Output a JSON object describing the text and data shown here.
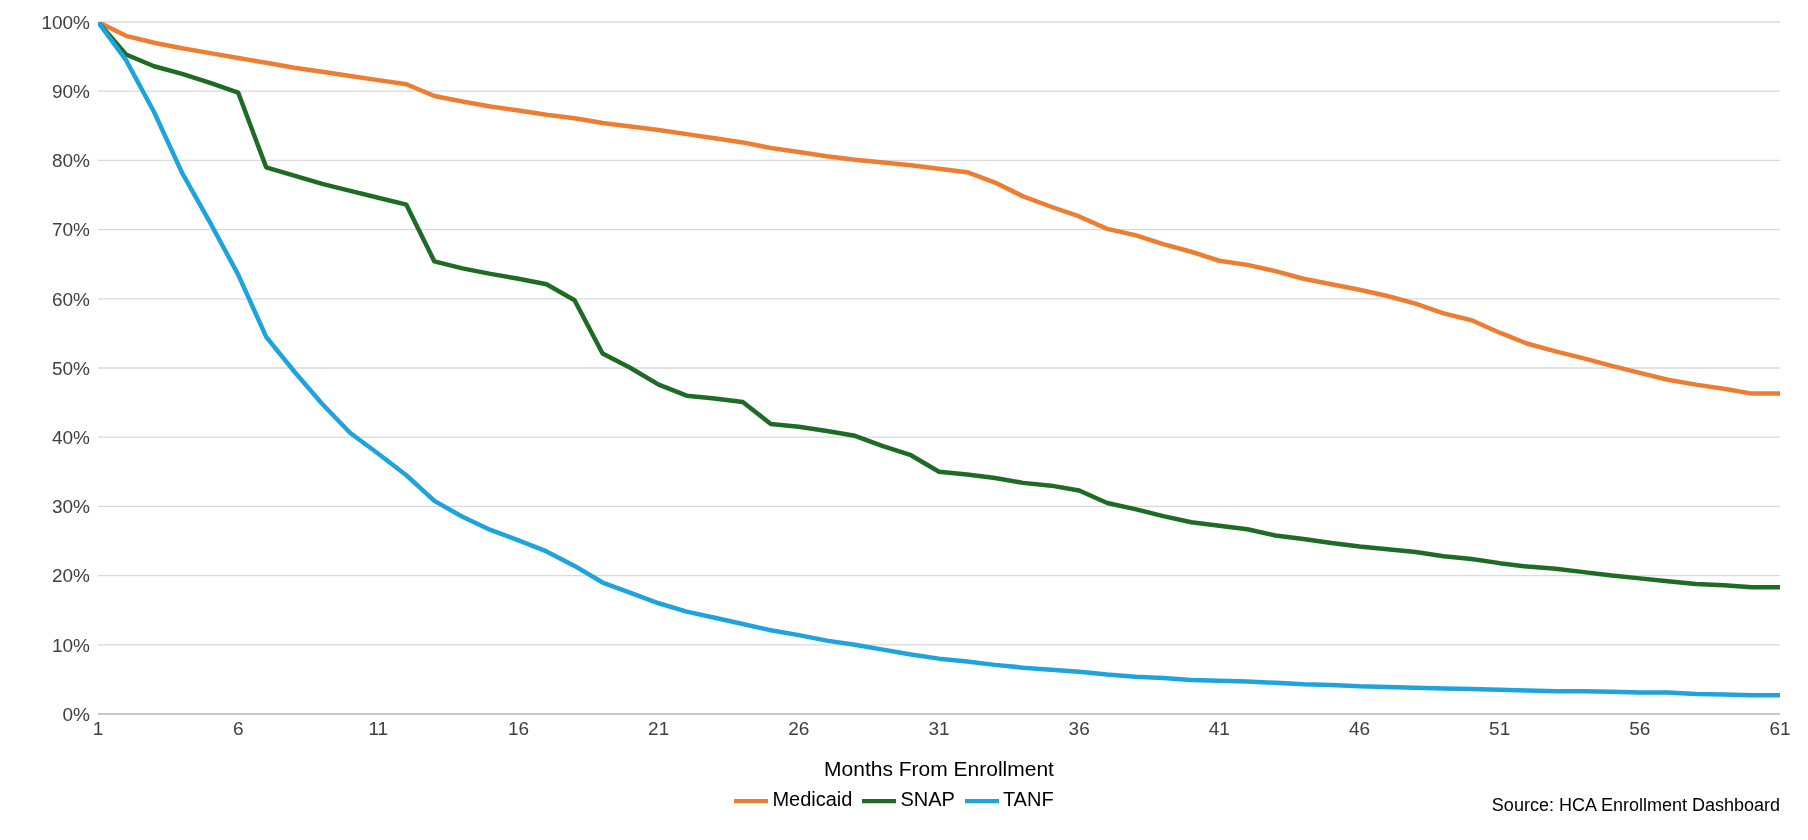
{
  "chart_data": {
    "type": "line",
    "xlabel": "Months From Enrollment",
    "x": [
      1,
      2,
      3,
      4,
      5,
      6,
      7,
      8,
      9,
      10,
      11,
      12,
      13,
      14,
      15,
      16,
      17,
      18,
      19,
      20,
      21,
      22,
      23,
      24,
      25,
      26,
      27,
      28,
      29,
      30,
      31,
      32,
      33,
      34,
      35,
      36,
      37,
      38,
      39,
      40,
      41,
      42,
      43,
      44,
      45,
      46,
      47,
      48,
      49,
      50,
      51,
      52,
      53,
      54,
      55,
      56,
      57,
      58,
      59,
      60,
      61
    ],
    "xlim": [
      1,
      61
    ],
    "xticks": [
      1,
      6,
      11,
      16,
      21,
      26,
      31,
      36,
      41,
      46,
      51,
      56,
      61
    ],
    "ylim": [
      0,
      100
    ],
    "yticks": [
      {
        "value": 0,
        "label": "0%"
      },
      {
        "value": 10,
        "label": "10%"
      },
      {
        "value": 20,
        "label": "20%"
      },
      {
        "value": 30,
        "label": "30%"
      },
      {
        "value": 40,
        "label": "40%"
      },
      {
        "value": 50,
        "label": "50%"
      },
      {
        "value": 60,
        "label": "60%"
      },
      {
        "value": 70,
        "label": "70%"
      },
      {
        "value": 80,
        "label": "80%"
      },
      {
        "value": 90,
        "label": "90%"
      },
      {
        "value": 100,
        "label": "100%"
      }
    ],
    "grid": "y",
    "legend": "bottom",
    "marker": "none",
    "line_style": "solid",
    "annotations": [
      "Source: HCA Enrollment Dashboard"
    ],
    "series": [
      {
        "name": "Medicaid",
        "color": "#ed7d31",
        "values": [
          100,
          98,
          97,
          96.2,
          95.5,
          94.8,
          94.1,
          93.4,
          92.8,
          92.2,
          91.6,
          91,
          89.3,
          88.5,
          87.8,
          87.2,
          86.6,
          86.1,
          85.4,
          84.9,
          84.4,
          83.8,
          83.2,
          82.6,
          81.8,
          81.2,
          80.6,
          80.1,
          79.7,
          79.3,
          78.8,
          78.3,
          76.8,
          74.8,
          73.3,
          71.9,
          70.1,
          69.2,
          67.9,
          66.8,
          65.5,
          64.9,
          64,
          62.9,
          62.1,
          61.3,
          60.4,
          59.3,
          57.9,
          56.9,
          55.1,
          53.5,
          52.4,
          51.4,
          50.3,
          49.3,
          48.3,
          47.6,
          47,
          46.3,
          46.3
        ]
      },
      {
        "name": "SNAP",
        "color": "#1e6b24",
        "values": [
          100,
          95.3,
          93.6,
          92.5,
          91.2,
          89.8,
          79,
          77.8,
          76.6,
          75.6,
          74.6,
          73.6,
          65.4,
          64.4,
          63.6,
          62.9,
          62.1,
          59.8,
          52.1,
          50,
          47.6,
          46,
          45.6,
          45.1,
          41.9,
          41.5,
          40.9,
          40.2,
          38.7,
          37.4,
          35,
          34.6,
          34.1,
          33.4,
          33,
          32.3,
          30.5,
          29.6,
          28.6,
          27.7,
          27.2,
          26.7,
          25.8,
          25.3,
          24.7,
          24.2,
          23.8,
          23.4,
          22.8,
          22.4,
          21.8,
          21.3,
          21,
          20.5,
          20,
          19.6,
          19.2,
          18.8,
          18.6,
          18.3,
          18.3
        ]
      },
      {
        "name": "TANF",
        "color": "#1fa3dc",
        "values": [
          100,
          94.5,
          87,
          78.2,
          71,
          63.5,
          54.5,
          49.5,
          44.8,
          40.6,
          37.6,
          34.5,
          30.8,
          28.5,
          26.6,
          25.1,
          23.5,
          21.4,
          19,
          17.5,
          16,
          14.8,
          13.9,
          13,
          12.1,
          11.4,
          10.6,
          10,
          9.3,
          8.6,
          8,
          7.6,
          7.1,
          6.7,
          6.4,
          6.1,
          5.7,
          5.4,
          5.2,
          4.9,
          4.8,
          4.7,
          4.5,
          4.3,
          4.2,
          4,
          3.9,
          3.8,
          3.7,
          3.6,
          3.5,
          3.4,
          3.3,
          3.3,
          3.2,
          3.1,
          3.1,
          2.9,
          2.8,
          2.7,
          2.7
        ]
      }
    ]
  }
}
